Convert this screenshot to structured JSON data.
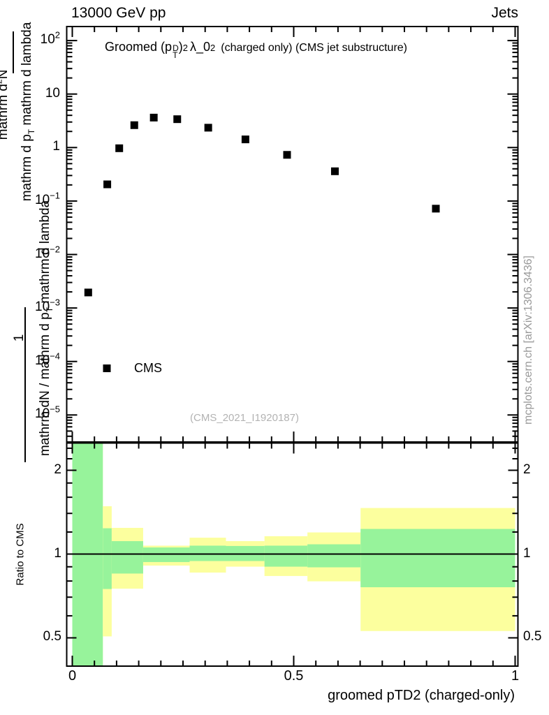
{
  "header": {
    "beam": "13000 GeV pp",
    "right": "Jets"
  },
  "title": {
    "main": "Groomed",
    "obs_pre": "(p",
    "obs_sub": "T",
    "obs_sup": "D",
    "obs_close": ")",
    "obs_sq": "2",
    "lambda": "λ_0",
    "lambda_sq": "2",
    "suffix": "(charged only) (CMS jet substructure)"
  },
  "legend": {
    "label": "CMS"
  },
  "watermark": "(CMS_2021_I1920187)",
  "side_note": "mcplots.cern.ch [arXiv:1306.3436]",
  "x_axis_label": "groomed pTD2 (charged-only)",
  "ratio_axis_label": "Ratio to CMS",
  "y_axis_fragments": {
    "num2_pre": "mathrm d",
    "num2_sup": "2",
    "num2_post": "N",
    "den1_pre": "mathrm d p",
    "den1_sub": "T",
    "den1_post": " mathrm d lambda",
    "num1": "1",
    "den2_pre": "mathrm dN / mathrm d p",
    "den2_sub": "T",
    "den2_post": " mathrm d lambda"
  },
  "chart_data": {
    "type": "scatter",
    "title": "Groomed (p_T^D)^2 lambda_0^2 (charged only) (CMS jet substructure)",
    "top_panel": {
      "yscale": "log",
      "ylim": [
        3.6e-06,
        210.0
      ],
      "xlim": [
        -0.0126,
        1.0066
      ],
      "x_major_ticks": [
        0,
        0.5,
        1
      ],
      "x_tick_labels": [
        "0",
        "0.5",
        "1"
      ],
      "x_minor_step": 0.05,
      "y_tick_exponents": [
        2,
        1,
        0,
        -1,
        -2,
        -3,
        -4,
        -5
      ],
      "grid": false,
      "legend_position": "lower-left",
      "series": [
        {
          "name": "CMS",
          "marker": "filled-square",
          "color": "#000000",
          "x": [
            0.036,
            0.079,
            0.106,
            0.14,
            0.184,
            0.237,
            0.307,
            0.391,
            0.485,
            0.593,
            0.821
          ],
          "y": [
            0.00195,
            0.205,
            0.97,
            2.62,
            3.63,
            3.39,
            2.35,
            1.42,
            0.73,
            0.36,
            0.072
          ]
        }
      ]
    },
    "ratio_panel": {
      "yscale": "log",
      "ylim": [
        0.397,
        2.52
      ],
      "y_major_ticks": [
        0.5,
        1,
        2
      ],
      "y_tick_labels": [
        "0.5",
        "1",
        "2"
      ],
      "y_minor_ticks": [
        0.4,
        0.6,
        0.7,
        0.8,
        0.9,
        1.2,
        1.4,
        1.6,
        1.8,
        2.2,
        2.4
      ],
      "reference_line": 1,
      "band_colors": {
        "yellow": "#fcff9e",
        "green": "#97f39b"
      },
      "bands": {
        "bin_edges": [
          0,
          0.069,
          0.089,
          0.16,
          0.265,
          0.347,
          0.434,
          0.531,
          0.651,
          1.0
        ],
        "yellow": [
          [
            2.52,
            0.397
          ],
          [
            1.485,
            0.506
          ],
          [
            1.242,
            0.751
          ],
          [
            1.072,
            0.909
          ],
          [
            1.145,
            0.858
          ],
          [
            1.113,
            0.901
          ],
          [
            1.159,
            0.834
          ],
          [
            1.196,
            0.798
          ],
          [
            1.464,
            0.529
          ]
        ],
        "green": [
          [
            2.52,
            0.397
          ],
          [
            1.238,
            0.749
          ],
          [
            1.113,
            0.851
          ],
          [
            1.056,
            0.936
          ],
          [
            1.072,
            0.944
          ],
          [
            1.069,
            0.944
          ],
          [
            1.072,
            0.901
          ],
          [
            1.084,
            0.896
          ],
          [
            1.231,
            0.76
          ]
        ]
      }
    }
  }
}
